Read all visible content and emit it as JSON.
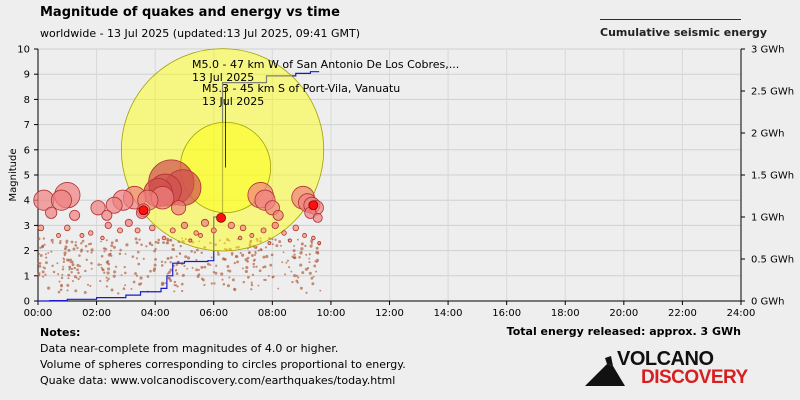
{
  "header": {
    "title": "Magnitude of quakes and energy vs time",
    "subtitle": "worldwide - 13 Jul 2025 (updated:13 Jul 2025, 09:41 GMT)"
  },
  "legend": {
    "label": "Cumulative seismic energy",
    "color": "#1a1acc"
  },
  "chart_data": {
    "type": "scatter",
    "xlabel": "",
    "ylabel": "Magnitude",
    "y2label": "",
    "xlim_hours": [
      0,
      24
    ],
    "ylim": [
      0,
      10
    ],
    "y2lim_gwh": [
      0,
      3
    ],
    "grid": true,
    "x_ticks": [
      "00:00",
      "02:00",
      "04:00",
      "06:00",
      "08:00",
      "10:00",
      "12:00",
      "14:00",
      "16:00",
      "18:00",
      "20:00",
      "22:00",
      "24:00"
    ],
    "y_ticks": [
      "0",
      "1",
      "2",
      "3",
      "4",
      "5",
      "6",
      "7",
      "8",
      "9",
      "10"
    ],
    "y2_ticks": [
      "0 GWh",
      "0.5 GWh",
      "1 GWh",
      "1.5 GWh",
      "2 GWh",
      "2.5 GWh",
      "3 GWh"
    ],
    "quakes": [
      {
        "t": 0.2,
        "mag": 4.0
      },
      {
        "t": 0.45,
        "mag": 3.5
      },
      {
        "t": 0.8,
        "mag": 4.0
      },
      {
        "t": 1.0,
        "mag": 4.2
      },
      {
        "t": 1.25,
        "mag": 3.4
      },
      {
        "t": 2.05,
        "mag": 3.7
      },
      {
        "t": 2.35,
        "mag": 3.4
      },
      {
        "t": 2.6,
        "mag": 3.8
      },
      {
        "t": 2.9,
        "mag": 4.0
      },
      {
        "t": 3.3,
        "mag": 4.1
      },
      {
        "t": 3.55,
        "mag": 3.5
      },
      {
        "t": 3.75,
        "mag": 4.0
      },
      {
        "t": 4.1,
        "mag": 4.3
      },
      {
        "t": 4.25,
        "mag": 4.1
      },
      {
        "t": 4.35,
        "mag": 4.4
      },
      {
        "t": 4.55,
        "mag": 4.7
      },
      {
        "t": 4.8,
        "mag": 3.7
      },
      {
        "t": 4.95,
        "mag": 4.5
      },
      {
        "t": 6.4,
        "mag": 5.3
      },
      {
        "t": 6.3,
        "mag": 6.0
      },
      {
        "t": 7.6,
        "mag": 4.2
      },
      {
        "t": 7.75,
        "mag": 4.0
      },
      {
        "t": 8.0,
        "mag": 3.7
      },
      {
        "t": 8.2,
        "mag": 3.4
      },
      {
        "t": 9.05,
        "mag": 4.1
      },
      {
        "t": 9.2,
        "mag": 3.9
      },
      {
        "t": 9.35,
        "mag": 3.8
      },
      {
        "t": 9.5,
        "mag": 3.7
      },
      {
        "t": 9.55,
        "mag": 3.3
      },
      {
        "t": 9.3,
        "mag": 3.5
      },
      {
        "t": 3.6,
        "mag": 3.6
      },
      {
        "t": 0.1,
        "mag": 2.9
      },
      {
        "t": 0.7,
        "mag": 2.6
      },
      {
        "t": 1.0,
        "mag": 2.9
      },
      {
        "t": 1.5,
        "mag": 2.6
      },
      {
        "t": 1.8,
        "mag": 2.7
      },
      {
        "t": 2.2,
        "mag": 2.5
      },
      {
        "t": 2.4,
        "mag": 3.0
      },
      {
        "t": 2.8,
        "mag": 2.8
      },
      {
        "t": 3.1,
        "mag": 3.1
      },
      {
        "t": 3.4,
        "mag": 2.8
      },
      {
        "t": 3.9,
        "mag": 2.9
      },
      {
        "t": 4.3,
        "mag": 2.5
      },
      {
        "t": 4.6,
        "mag": 2.8
      },
      {
        "t": 5.0,
        "mag": 3.0
      },
      {
        "t": 5.4,
        "mag": 2.7
      },
      {
        "t": 5.7,
        "mag": 3.1
      },
      {
        "t": 6.0,
        "mag": 2.8
      },
      {
        "t": 6.6,
        "mag": 3.0
      },
      {
        "t": 7.0,
        "mag": 2.9
      },
      {
        "t": 7.3,
        "mag": 2.6
      },
      {
        "t": 7.7,
        "mag": 2.8
      },
      {
        "t": 8.1,
        "mag": 3.0
      },
      {
        "t": 8.4,
        "mag": 2.7
      },
      {
        "t": 8.8,
        "mag": 2.9
      },
      {
        "t": 9.1,
        "mag": 2.6
      },
      {
        "t": 9.4,
        "mag": 2.5
      },
      {
        "t": 9.6,
        "mag": 2.3
      },
      {
        "t": 5.2,
        "mag": 2.4
      },
      {
        "t": 6.9,
        "mag": 2.5
      },
      {
        "t": 7.9,
        "mag": 2.3
      },
      {
        "t": 8.6,
        "mag": 2.4
      },
      {
        "t": 5.55,
        "mag": 2.6
      }
    ],
    "small_quakes_note": "many sub-M2.5 events across 00:00–09:40",
    "energy_steps": [
      {
        "t": 0.0,
        "gwh": 0.0
      },
      {
        "t": 0.4,
        "gwh": 0.005
      },
      {
        "t": 1.0,
        "gwh": 0.02
      },
      {
        "t": 2.0,
        "gwh": 0.04
      },
      {
        "t": 3.0,
        "gwh": 0.07
      },
      {
        "t": 3.5,
        "gwh": 0.11
      },
      {
        "t": 4.2,
        "gwh": 0.15
      },
      {
        "t": 4.4,
        "gwh": 0.3
      },
      {
        "t": 4.6,
        "gwh": 0.45
      },
      {
        "t": 5.0,
        "gwh": 0.47
      },
      {
        "t": 5.8,
        "gwh": 0.48
      },
      {
        "t": 6.0,
        "gwh": 1.0
      },
      {
        "t": 6.25,
        "gwh": 1.05
      },
      {
        "t": 6.3,
        "gwh": 2.6
      },
      {
        "t": 7.8,
        "gwh": 2.68
      },
      {
        "t": 8.8,
        "gwh": 2.71
      },
      {
        "t": 9.3,
        "gwh": 2.73
      },
      {
        "t": 9.6,
        "gwh": 2.73
      }
    ],
    "annotations": [
      {
        "text": "M5.0 - 47 km W of San Antonio De Los Cobres,...",
        "date": "13 Jul 2025"
      },
      {
        "text": "M5.3 - 45 km S of Port-Vila, Vanuatu",
        "date": "13 Jul 2025"
      }
    ]
  },
  "footer": {
    "notes_heading": "Notes:",
    "note1": "Data near-complete from magnitudes of 4.0 or higher.",
    "note2": "Volume of spheres corresponding to circles proportional to energy.",
    "note3": "Quake data: www.volcanodiscovery.com/earthquakes/today.html",
    "total": "Total energy released: approx. 3 GWh"
  },
  "logo": {
    "line1": "VOLCANO",
    "line2": "DISCOVERY"
  }
}
